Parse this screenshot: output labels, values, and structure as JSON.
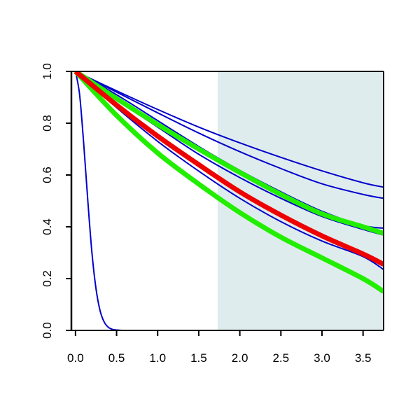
{
  "chart_data": {
    "type": "line",
    "title": "",
    "xlabel": "",
    "ylabel": "",
    "xlim": [
      -0.05,
      3.75
    ],
    "ylim": [
      0.0,
      1.0
    ],
    "x_ticks": [
      "0.0",
      "0.5",
      "1.0",
      "1.5",
      "2.0",
      "2.5",
      "3.0",
      "3.5"
    ],
    "y_ticks": [
      "0.0",
      "0.2",
      "0.4",
      "0.6",
      "0.8",
      "1.0"
    ],
    "grid": false,
    "shaded_region": {
      "x_start": 1.73,
      "x_end": 3.75,
      "color": "#dfeced"
    },
    "series": [
      {
        "color": "#0000cc",
        "style": "thin",
        "x": [
          0.0,
          0.05,
          0.1,
          0.15,
          0.2,
          0.25,
          0.3,
          0.35,
          0.4,
          0.45,
          0.5,
          0.6,
          0.7,
          1.0,
          2.0,
          3.0,
          3.75
        ],
        "values": [
          1.0,
          0.91,
          0.72,
          0.5,
          0.3,
          0.16,
          0.075,
          0.032,
          0.012,
          0.004,
          0.0015,
          0.0,
          0.0,
          0.0,
          0.0,
          0.0,
          0.0
        ]
      },
      {
        "color": "#0000cc",
        "style": "thin",
        "x": [
          0.0,
          0.5,
          1.0,
          1.5,
          2.0,
          2.5,
          3.0,
          3.5,
          3.75
        ],
        "values": [
          1.0,
          0.925,
          0.853,
          0.785,
          0.724,
          0.668,
          0.616,
          0.57,
          0.553
        ]
      },
      {
        "color": "#0000cc",
        "style": "thin",
        "x": [
          0.0,
          0.5,
          1.0,
          1.5,
          2.0,
          2.5,
          3.0,
          3.5,
          3.75
        ],
        "values": [
          1.0,
          0.92,
          0.84,
          0.762,
          0.69,
          0.625,
          0.566,
          0.525,
          0.51
        ]
      },
      {
        "color": "#0000cc",
        "style": "thin",
        "x": [
          0.0,
          0.5,
          1.0,
          1.5,
          2.0,
          2.5,
          3.0,
          3.5,
          3.75
        ],
        "values": [
          1.0,
          0.91,
          0.81,
          0.71,
          0.618,
          0.535,
          0.46,
          0.405,
          0.395
        ]
      },
      {
        "color": "#0000cc",
        "style": "thin",
        "x": [
          0.0,
          0.5,
          1.0,
          1.5,
          2.0,
          2.5,
          3.0,
          3.5,
          3.75
        ],
        "values": [
          1.0,
          0.89,
          0.785,
          0.68,
          0.59,
          0.51,
          0.44,
          0.39,
          0.368
        ]
      },
      {
        "color": "#0000cc",
        "style": "thin",
        "x": [
          0.0,
          0.5,
          1.0,
          1.5,
          2.0,
          2.5,
          3.0,
          3.5,
          3.75
        ],
        "values": [
          1.0,
          0.86,
          0.73,
          0.615,
          0.51,
          0.42,
          0.345,
          0.285,
          0.235
        ]
      },
      {
        "color": "#22ee00",
        "style": "thick",
        "x": [
          0.0,
          0.5,
          1.0,
          1.5,
          2.0,
          2.5,
          3.0,
          3.5,
          3.75
        ],
        "values": [
          1.0,
          0.895,
          0.795,
          0.7,
          0.61,
          0.525,
          0.45,
          0.4,
          0.375
        ]
      },
      {
        "color": "#22ee00",
        "style": "thick",
        "x": [
          0.0,
          0.5,
          1.0,
          1.5,
          2.0,
          2.5,
          3.0,
          3.5,
          3.75
        ],
        "values": [
          1.0,
          0.83,
          0.685,
          0.565,
          0.455,
          0.36,
          0.28,
          0.2,
          0.15
        ]
      },
      {
        "color": "#ee0000",
        "style": "thick",
        "x": [
          0.0,
          0.5,
          1.0,
          1.5,
          2.0,
          2.5,
          3.0,
          3.5,
          3.75
        ],
        "values": [
          1.0,
          0.87,
          0.75,
          0.64,
          0.535,
          0.445,
          0.365,
          0.295,
          0.255
        ]
      }
    ]
  }
}
